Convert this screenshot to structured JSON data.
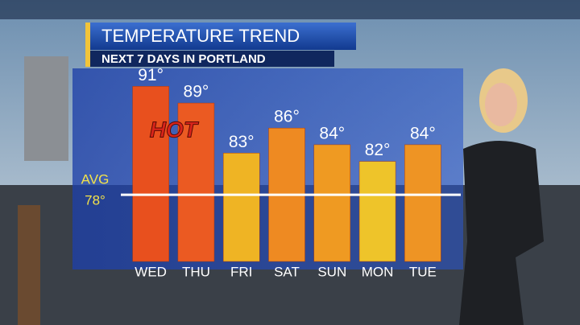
{
  "chart_data": {
    "type": "bar",
    "title": "TEMPERATURE TREND",
    "subtitle": "NEXT 7 DAYS IN PORTLAND",
    "categories": [
      "WED",
      "THU",
      "FRI",
      "SAT",
      "SUN",
      "MON",
      "TUE"
    ],
    "values": [
      91,
      89,
      83,
      86,
      84,
      82,
      84
    ],
    "value_labels": [
      "91°",
      "89°",
      "83°",
      "86°",
      "84°",
      "82°",
      "84°"
    ],
    "colors": [
      "#e8501e",
      "#eb5a22",
      "#efb424",
      "#ee8a22",
      "#ef9a22",
      "#eec42a",
      "#ee9424"
    ],
    "ylim": [
      70,
      92
    ],
    "reference_line": {
      "value": 78,
      "label": "AVG",
      "value_label": "78°"
    },
    "annotation": "HOT"
  }
}
